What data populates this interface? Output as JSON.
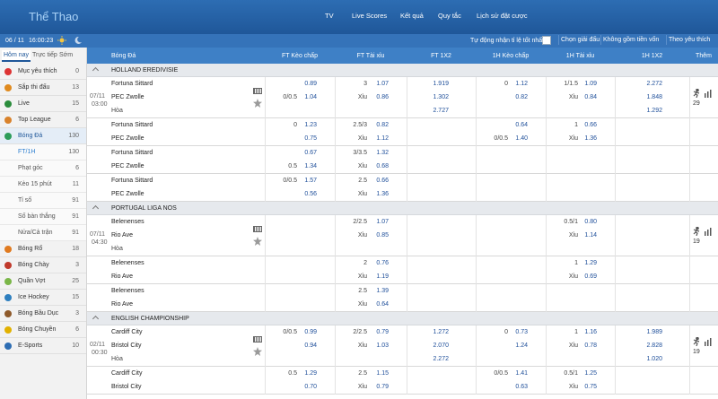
{
  "header": {
    "title": "Thể Thao",
    "nav": [
      "TV",
      "Live Scores",
      "Kết quả",
      "Quy tắc",
      "Lịch sử đặt cược"
    ]
  },
  "toolbar": {
    "date": "06 / 11",
    "time": "16:00:23",
    "auto_odds": "Tự động nhận tỉ lệ tốt nhất",
    "filters": [
      "Chọn giải đấu",
      "Không gồm tiền vốn",
      "Theo yêu thích"
    ]
  },
  "sidebar": {
    "tabs": [
      "Hôm nay",
      "Trực tiếp",
      "Sớm"
    ],
    "items": [
      {
        "label": "Mục yêu thích",
        "count": 0
      },
      {
        "label": "Sắp thi đấu",
        "count": 13
      },
      {
        "label": "Live",
        "count": 15
      },
      {
        "label": "Top League",
        "count": 6
      },
      {
        "label": "Bóng Đá",
        "count": 130,
        "children": [
          {
            "label": "FT/1H",
            "count": 130
          },
          {
            "label": "Phạt góc",
            "count": 6
          },
          {
            "label": "Kèo 15 phút",
            "count": 11
          },
          {
            "label": "Tỉ số",
            "count": 91
          },
          {
            "label": "Số bàn thắng",
            "count": 91
          },
          {
            "label": "Nửa/Cả trận",
            "count": 91
          }
        ]
      },
      {
        "label": "Bóng Rổ",
        "count": 18
      },
      {
        "label": "Bóng Chày",
        "count": 3
      },
      {
        "label": "Quần Vợt",
        "count": 25
      },
      {
        "label": "Ice Hockey",
        "count": 15
      },
      {
        "label": "Bóng Bầu Dục",
        "count": 3
      },
      {
        "label": "Bóng Chuyền",
        "count": 6
      },
      {
        "label": "E-Sports",
        "count": 10
      }
    ]
  },
  "table": {
    "columns": [
      "Bóng Đá",
      "FT Kèo chấp",
      "FT Tài xỉu",
      "FT 1X2",
      "1H Kèo chấp",
      "1H Tài xỉu",
      "1H 1X2",
      "Thêm"
    ],
    "leagues": [
      {
        "name": "HOLLAND EREDIVISIE",
        "matches": [
          {
            "date": "07/11",
            "time": "03:00",
            "teams": [
              "Fortuna Sittard",
              "PEC Zwolle",
              "Hòa"
            ],
            "more": 29,
            "rows": [
              [
                null,
                "0.89",
                "3",
                "1.07",
                "1.919",
                "0",
                "1.12",
                "1/1.5",
                "1.09",
                "2.272"
              ],
              [
                "0/0.5",
                "1.04",
                "Xỉu",
                "0.86",
                "1.302",
                null,
                "0.82",
                "Xỉu",
                "0.84",
                "1.848"
              ],
              [
                null,
                null,
                null,
                null,
                "2.727",
                null,
                null,
                null,
                null,
                "1.292"
              ]
            ]
          },
          {
            "teams": [
              "Fortuna Sittard",
              "PEC Zwolle"
            ],
            "rows": [
              [
                "0",
                "1.23",
                "2.5/3",
                "0.82",
                null,
                null,
                "0.64",
                "1",
                "0.66",
                null
              ],
              [
                null,
                "0.75",
                "Xỉu",
                "1.12",
                null,
                "0/0.5",
                "1.40",
                "Xỉu",
                "1.36",
                null
              ]
            ]
          },
          {
            "teams": [
              "Fortuna Sittard",
              "PEC Zwolle"
            ],
            "rows": [
              [
                null,
                "0.67",
                "3/3.5",
                "1.32",
                null,
                null,
                null,
                null,
                null,
                null
              ],
              [
                "0.5",
                "1.34",
                "Xỉu",
                "0.68",
                null,
                null,
                null,
                null,
                null,
                null
              ]
            ]
          },
          {
            "teams": [
              "Fortuna Sittard",
              "PEC Zwolle"
            ],
            "rows": [
              [
                "0/0.5",
                "1.57",
                "2.5",
                "0.66",
                null,
                null,
                null,
                null,
                null,
                null
              ],
              [
                null,
                "0.56",
                "Xỉu",
                "1.36",
                null,
                null,
                null,
                null,
                null,
                null
              ]
            ]
          }
        ]
      },
      {
        "name": "PORTUGAL LIGA NOS",
        "matches": [
          {
            "date": "07/11",
            "time": "04:30",
            "teams": [
              "Belenenses",
              "Rio Ave",
              "Hòa"
            ],
            "more": 19,
            "rows": [
              [
                null,
                null,
                "2/2.5",
                "1.07",
                null,
                null,
                null,
                "0.5/1",
                "0.80",
                null
              ],
              [
                null,
                null,
                "Xỉu",
                "0.85",
                null,
                null,
                null,
                "Xỉu",
                "1.14",
                null
              ],
              [
                null,
                null,
                null,
                null,
                null,
                null,
                null,
                null,
                null,
                null
              ]
            ]
          },
          {
            "teams": [
              "Belenenses",
              "Rio Ave"
            ],
            "rows": [
              [
                null,
                null,
                "2",
                "0.76",
                null,
                null,
                null,
                "1",
                "1.29",
                null
              ],
              [
                null,
                null,
                "Xỉu",
                "1.19",
                null,
                null,
                null,
                "Xỉu",
                "0.69",
                null
              ]
            ]
          },
          {
            "teams": [
              "Belenenses",
              "Rio Ave"
            ],
            "rows": [
              [
                null,
                null,
                "2.5",
                "1.39",
                null,
                null,
                null,
                null,
                null,
                null
              ],
              [
                null,
                null,
                "Xỉu",
                "0.64",
                null,
                null,
                null,
                null,
                null,
                null
              ]
            ]
          }
        ]
      },
      {
        "name": "ENGLISH CHAMPIONSHIP",
        "matches": [
          {
            "date": "02/11",
            "time": "00:30",
            "teams": [
              "Cardiff City",
              "Bristol City",
              "Hòa"
            ],
            "more": 19,
            "rows": [
              [
                "0/0.5",
                "0.99",
                "2/2.5",
                "0.79",
                "1.272",
                "0",
                "0.73",
                "1",
                "1.16",
                "1.989"
              ],
              [
                null,
                "0.94",
                "Xỉu",
                "1.03",
                "2.070",
                null,
                "1.24",
                "Xỉu",
                "0.78",
                "2.828"
              ],
              [
                null,
                null,
                null,
                null,
                "2.272",
                null,
                null,
                null,
                null,
                "1.020"
              ]
            ]
          },
          {
            "teams": [
              "Cardiff City",
              "Bristol City"
            ],
            "rows": [
              [
                "0.5",
                "1.29",
                "2.5",
                "1.15",
                null,
                "0/0.5",
                "1.41",
                "0.5/1",
                "1.25",
                null
              ],
              [
                null,
                "0.70",
                "Xỉu",
                "0.79",
                null,
                null,
                "0.63",
                "Xỉu",
                "0.75",
                null
              ]
            ]
          }
        ]
      }
    ]
  }
}
